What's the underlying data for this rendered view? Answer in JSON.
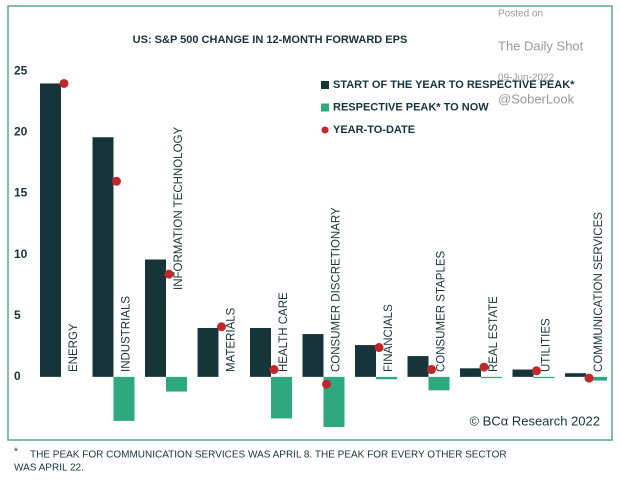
{
  "chart_data": {
    "type": "bar",
    "title": "US: S&P 500 CHANGE IN 12-MONTH FORWARD EPS",
    "categories": [
      "ENERGY",
      "INDUSTRIALS",
      "INFORMATION TECHNOLOGY",
      "MATERIALS",
      "HEALTH CARE",
      "CONSUMER DISCRETIONARY",
      "FINANCIALS",
      "CONSUMER STAPLES",
      "REAL ESTATE",
      "UTILITIES",
      "COMMUNICATION SERVICES"
    ],
    "series": [
      {
        "name": "START OF THE YEAR TO RESPECTIVE PEAK*",
        "color": "#17343a",
        "values": [
          24,
          19.6,
          9.6,
          4.0,
          4.0,
          3.5,
          2.6,
          1.7,
          0.7,
          0.6,
          0.3
        ]
      },
      {
        "name": "RESPECTIVE PEAK* TO NOW",
        "color": "#2ea87e",
        "values": [
          0,
          -3.6,
          -1.2,
          0,
          -3.4,
          -4.1,
          -0.2,
          -1.1,
          -0.1,
          -0.1,
          -0.3
        ]
      },
      {
        "name": "YEAR-TO-DATE",
        "color": "#c0282b",
        "values": [
          24,
          16,
          8.4,
          4.1,
          0.6,
          -0.6,
          2.4,
          0.6,
          0.8,
          0.5,
          -0.1
        ]
      }
    ],
    "ylim": [
      -5,
      26
    ],
    "yticks": [
      0,
      5,
      10,
      15,
      20,
      25
    ],
    "watermark": [
      "Posted on",
      "The Daily Shot",
      "09-Jun-2022",
      "@SoberLook"
    ],
    "source": "© BCα Research 2022",
    "footnote": {
      "marker": "*",
      "lines": [
        "THE PEAK FOR COMMUNICATION SERVICES WAS APRIL 8. THE PEAK FOR EVERY OTHER SECTOR",
        "WAS APRIL 22."
      ]
    }
  }
}
